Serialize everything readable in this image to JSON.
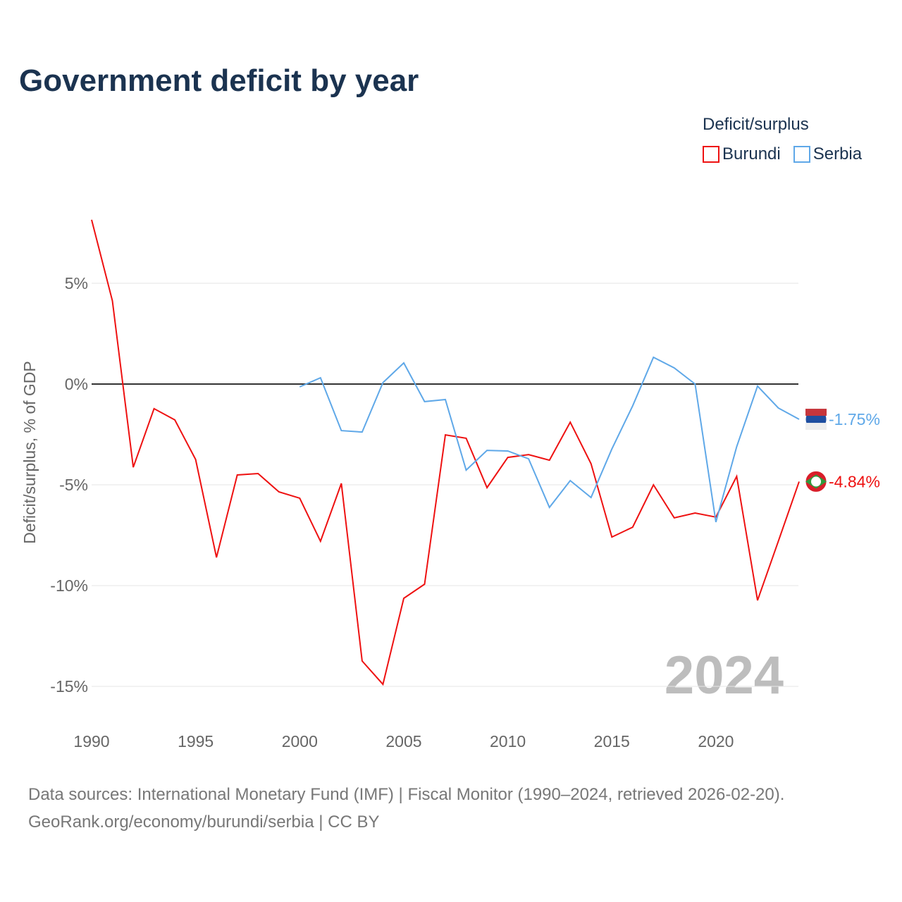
{
  "chart_data": {
    "type": "line",
    "title": "Government deficit by year",
    "ylabel": "Deficit/surplus, % of GDP",
    "xlabel": "",
    "xlim": [
      1990,
      2024
    ],
    "ylim": [
      -16.5,
      8.5
    ],
    "x_ticks": [
      1990,
      1995,
      2000,
      2005,
      2010,
      2015,
      2020
    ],
    "y_ticks": [
      5,
      0,
      -5,
      -10,
      -15
    ],
    "y_tick_labels": [
      "5%",
      "0%",
      "-5%",
      "-10%",
      "-15%"
    ],
    "grid": true,
    "legend_title": "Deficit/surplus",
    "legend_position": "top-right",
    "year_watermark": "2024",
    "series": [
      {
        "name": "Burundi",
        "color": "#ee1111",
        "end_label": "-4.84%",
        "x": [
          1990,
          1991,
          1992,
          1993,
          1994,
          1995,
          1996,
          1997,
          1998,
          1999,
          2000,
          2001,
          2002,
          2003,
          2004,
          2005,
          2006,
          2007,
          2008,
          2009,
          2010,
          2011,
          2012,
          2013,
          2014,
          2015,
          2016,
          2017,
          2018,
          2019,
          2020,
          2021,
          2022,
          2023,
          2024
        ],
        "values": [
          8.15,
          4.13,
          -4.13,
          -1.22,
          -1.78,
          -3.74,
          -8.6,
          -4.51,
          -4.44,
          -5.35,
          -5.66,
          -7.8,
          -4.93,
          -13.74,
          -14.9,
          -10.63,
          -9.93,
          -2.52,
          -2.69,
          -5.14,
          -3.64,
          -3.5,
          -3.78,
          -1.89,
          -3.95,
          -7.59,
          -7.1,
          -5.0,
          -6.64,
          -6.4,
          -6.6,
          -4.58,
          -10.73,
          -7.8,
          -4.84
        ]
      },
      {
        "name": "Serbia",
        "color": "#5fa8e8",
        "end_label": "-1.75%",
        "x": [
          2000,
          2001,
          2002,
          2003,
          2004,
          2005,
          2006,
          2007,
          2008,
          2009,
          2010,
          2011,
          2012,
          2013,
          2014,
          2015,
          2016,
          2017,
          2018,
          2019,
          2020,
          2021,
          2022,
          2023,
          2024
        ],
        "values": [
          -0.14,
          0.31,
          -2.31,
          -2.38,
          0.07,
          1.05,
          -0.87,
          -0.77,
          -4.27,
          -3.29,
          -3.32,
          -3.71,
          -6.12,
          -4.79,
          -5.63,
          -3.22,
          -1.08,
          1.33,
          0.8,
          0.0,
          -6.85,
          -3.11,
          -0.1,
          -1.19,
          -1.75
        ]
      }
    ]
  },
  "footer": {
    "line1": "Data sources: International Monetary Fund (IMF) | Fiscal Monitor (1990–2024, retrieved 2026-02-20).",
    "line2": "GeoRank.org/economy/burundi/serbia | CC BY"
  }
}
